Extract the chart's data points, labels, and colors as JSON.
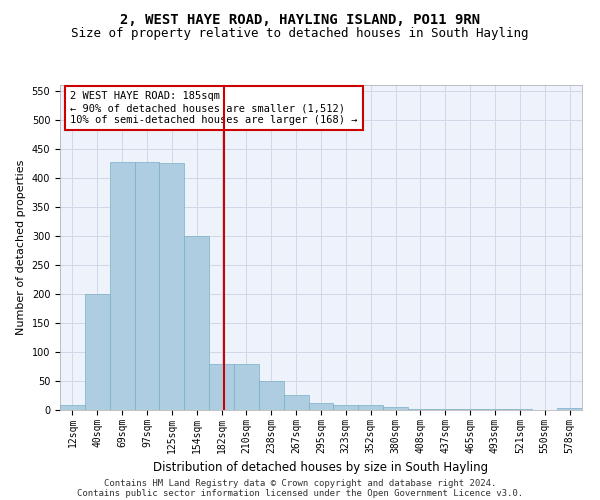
{
  "title": "2, WEST HAYE ROAD, HAYLING ISLAND, PO11 9RN",
  "subtitle": "Size of property relative to detached houses in South Hayling",
  "xlabel": "Distribution of detached houses by size in South Hayling",
  "ylabel": "Number of detached properties",
  "categories": [
    "12sqm",
    "40sqm",
    "69sqm",
    "97sqm",
    "125sqm",
    "154sqm",
    "182sqm",
    "210sqm",
    "238sqm",
    "267sqm",
    "295sqm",
    "323sqm",
    "352sqm",
    "380sqm",
    "408sqm",
    "437sqm",
    "465sqm",
    "493sqm",
    "521sqm",
    "550sqm",
    "578sqm"
  ],
  "values": [
    8,
    200,
    428,
    428,
    425,
    300,
    80,
    80,
    50,
    25,
    12,
    8,
    8,
    5,
    2,
    2,
    1,
    1,
    1,
    0,
    3
  ],
  "bar_color": "#aecde0",
  "bar_edge_color": "#7aafc8",
  "grid_color": "#d0d8e8",
  "background_color": "#ffffff",
  "plot_bg_color": "#eef2fa",
  "vline_color": "#cc0000",
  "annotation_text": "2 WEST HAYE ROAD: 185sqm\n← 90% of detached houses are smaller (1,512)\n10% of semi-detached houses are larger (168) →",
  "annotation_box_color": "#cc0000",
  "ylim": [
    0,
    560
  ],
  "yticks": [
    0,
    50,
    100,
    150,
    200,
    250,
    300,
    350,
    400,
    450,
    500,
    550
  ],
  "footer_line1": "Contains HM Land Registry data © Crown copyright and database right 2024.",
  "footer_line2": "Contains public sector information licensed under the Open Government Licence v3.0.",
  "title_fontsize": 10,
  "subtitle_fontsize": 9,
  "xlabel_fontsize": 8.5,
  "ylabel_fontsize": 8,
  "tick_fontsize": 7,
  "annotation_fontsize": 7.5,
  "footer_fontsize": 6.5
}
